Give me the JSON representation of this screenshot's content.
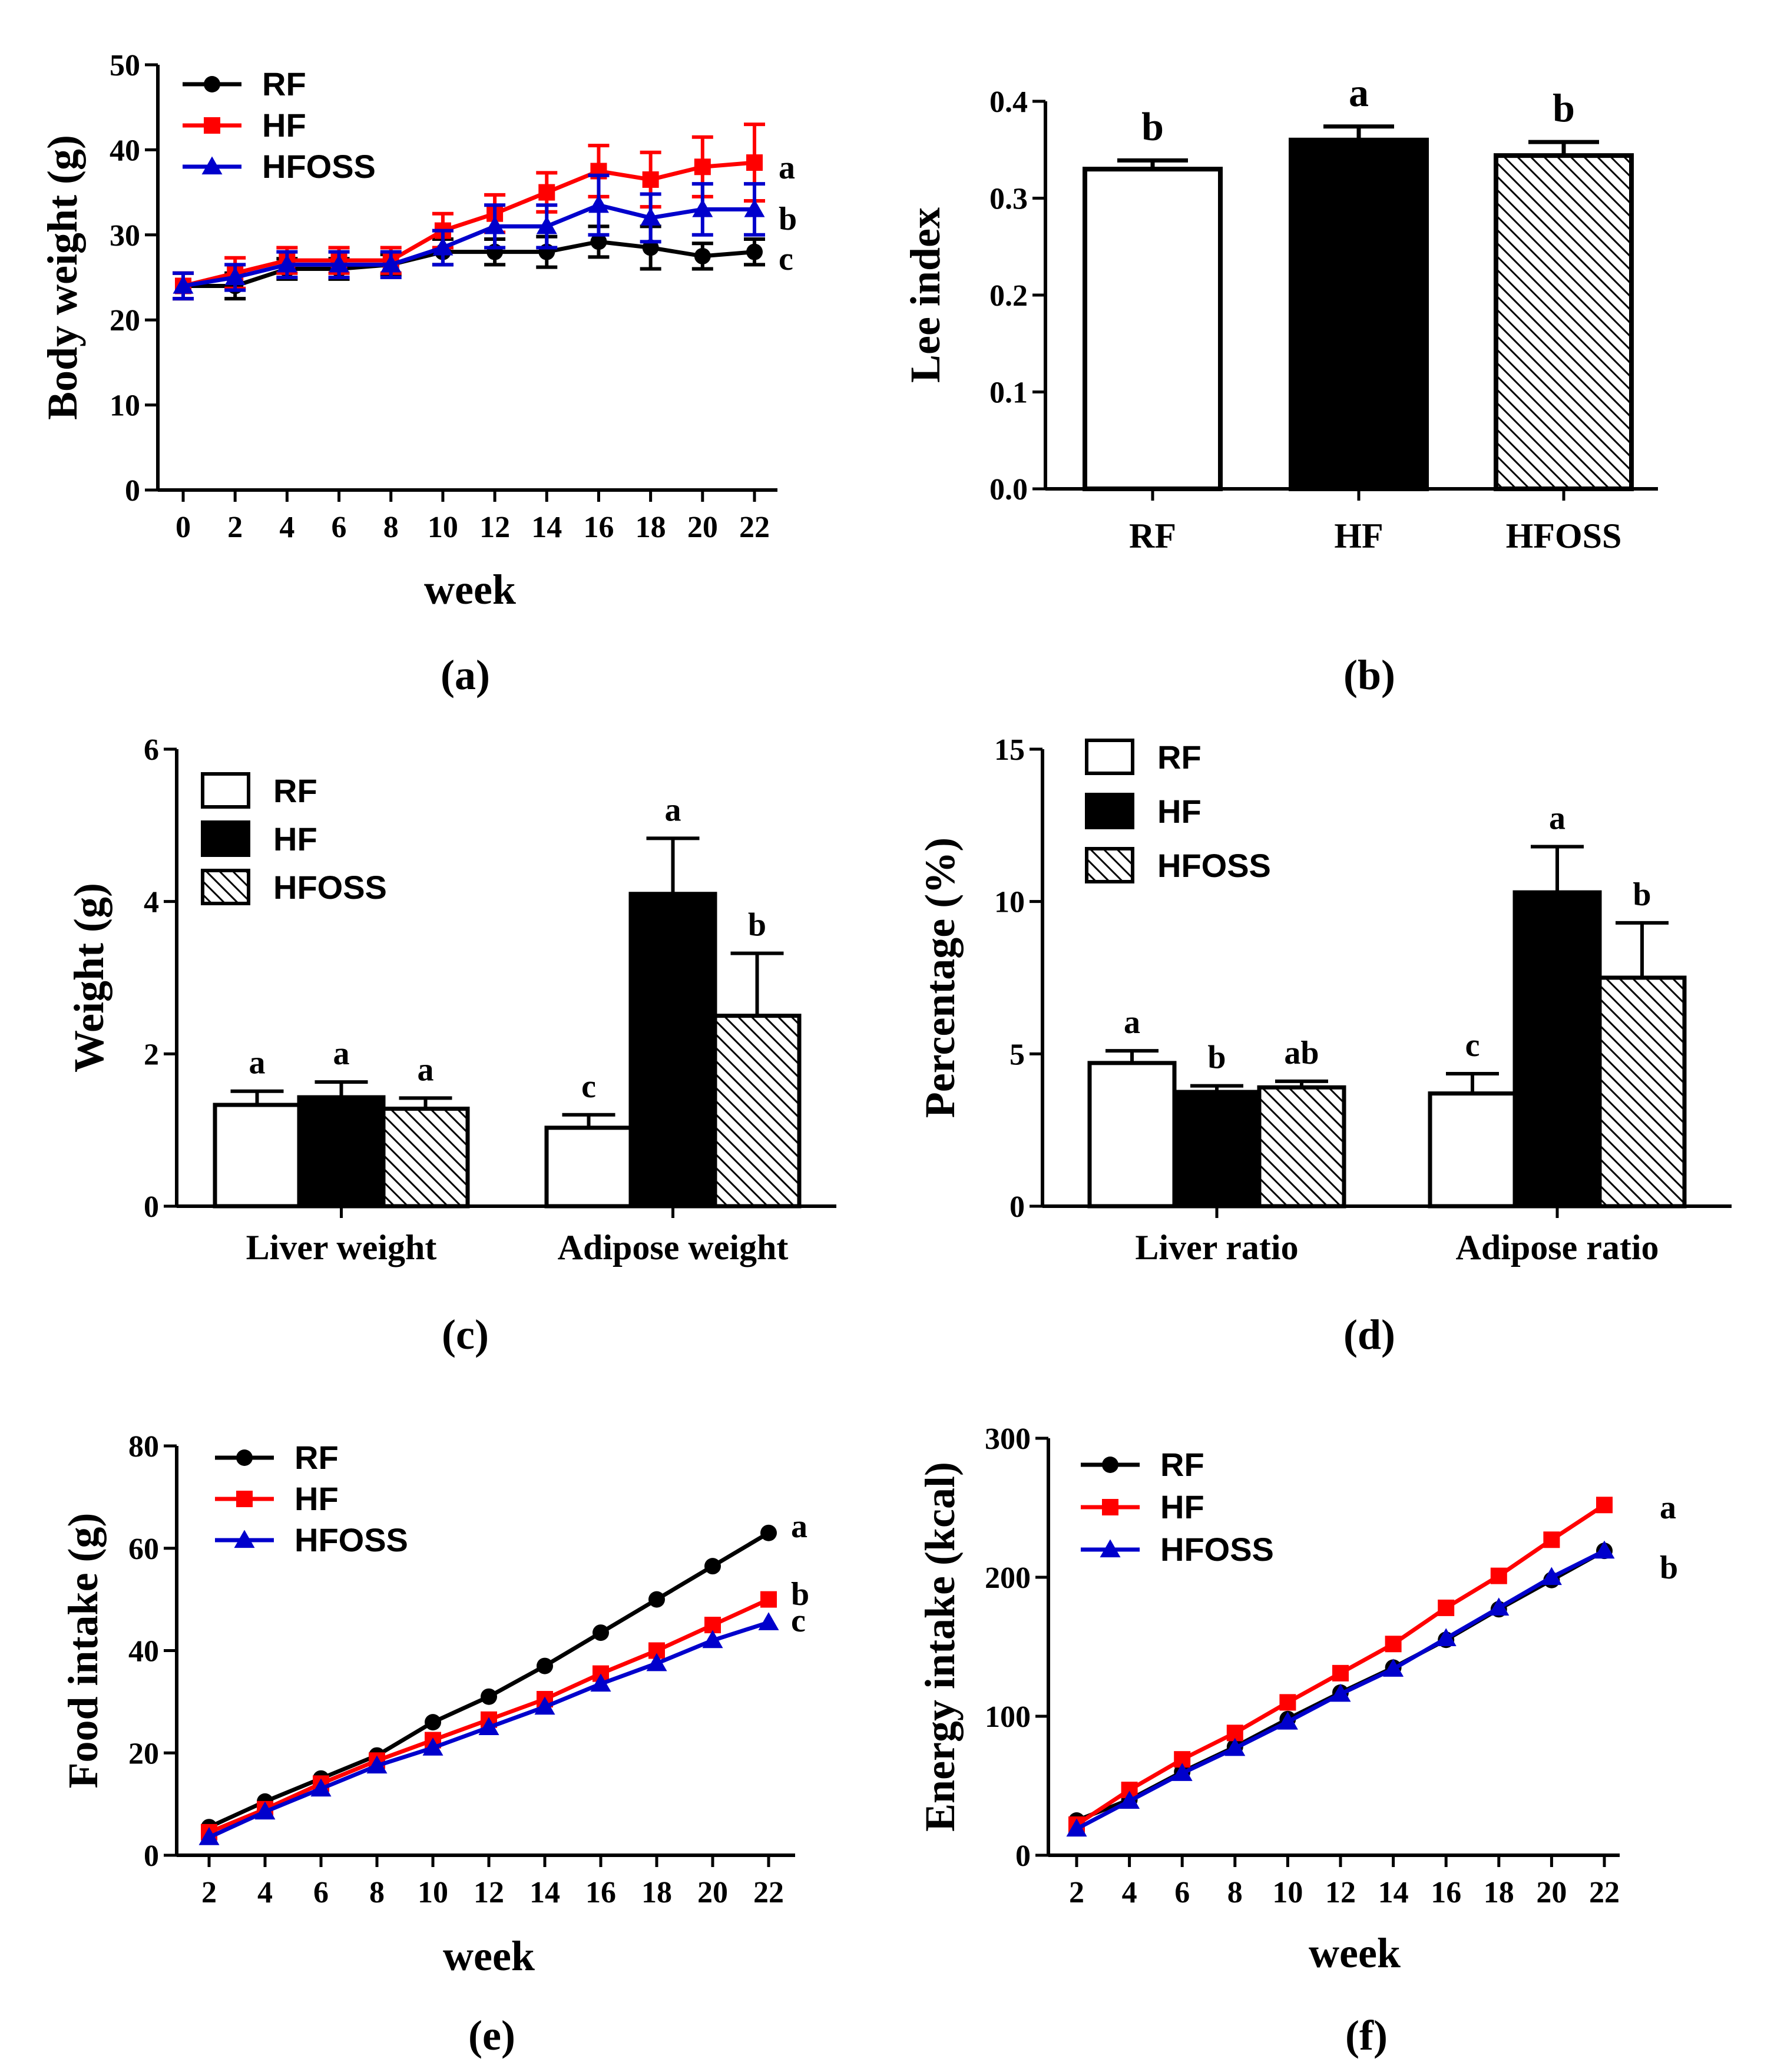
{
  "chart_data": [
    {
      "id": "a",
      "type": "line",
      "panel_label": "(a)",
      "xlabel": "week",
      "ylabel": "Body weight (g)",
      "ylim": [
        0,
        50
      ],
      "yticks": [
        "0",
        "10",
        "20",
        "30",
        "40",
        "50"
      ],
      "x": [
        0,
        2,
        4,
        6,
        8,
        10,
        12,
        14,
        16,
        18,
        20,
        22
      ],
      "xticks": [
        "0",
        "2",
        "4",
        "6",
        "8",
        "10",
        "12",
        "14",
        "16",
        "18",
        "20",
        "22"
      ],
      "series": [
        {
          "name": "RF",
          "color": "#000000",
          "marker": "circle",
          "values": [
            24,
            24,
            26,
            26,
            26.5,
            28,
            28,
            28,
            29.2,
            28.5,
            27.5,
            28
          ],
          "err": [
            1.5,
            1.5,
            1.2,
            1.2,
            1.2,
            1.5,
            1.5,
            1.8,
            1.8,
            2.5,
            1.5,
            1.5
          ]
        },
        {
          "name": "HF",
          "color": "#ff0000",
          "marker": "square",
          "values": [
            24,
            25.5,
            27,
            27,
            27,
            30.5,
            32.5,
            35,
            37.5,
            36.5,
            38,
            38.5
          ],
          "err": [
            1.5,
            1.8,
            1.5,
            1.5,
            1.5,
            2,
            2.2,
            2.3,
            3,
            3.2,
            3.5,
            4.5
          ]
        },
        {
          "name": "HFOSS",
          "color": "#0000cc",
          "marker": "triangle",
          "values": [
            24,
            25,
            26.5,
            26.5,
            26.5,
            28.5,
            31,
            31,
            33.5,
            32,
            33,
            33
          ],
          "err": [
            1.5,
            1.5,
            1.5,
            1.5,
            1.5,
            2,
            2.5,
            2.5,
            3.5,
            2.8,
            3,
            3
          ]
        }
      ],
      "significance": [
        "a",
        "b",
        "c"
      ]
    },
    {
      "id": "b",
      "type": "bar",
      "panel_label": "(b)",
      "ylabel": "Lee index",
      "ylim": [
        0,
        0.4
      ],
      "yticks": [
        "0.0",
        "0.1",
        "0.2",
        "0.3",
        "0.4"
      ],
      "categories": [
        "RF",
        "HF",
        "HFOSS"
      ],
      "values": [
        0.33,
        0.36,
        0.344
      ],
      "err": [
        0.009,
        0.014,
        0.014
      ],
      "fills": [
        "white",
        "black",
        "hatch"
      ],
      "significance": [
        "b",
        "a",
        "b"
      ]
    },
    {
      "id": "c",
      "type": "bar",
      "panel_label": "(c)",
      "ylabel": "Weight (g)",
      "ylim": [
        0,
        6
      ],
      "yticks": [
        "0",
        "2",
        "4",
        "6"
      ],
      "categories": [
        "Liver weight",
        "Adipose weight"
      ],
      "series": [
        {
          "name": "RF",
          "fill": "white",
          "values": [
            1.33,
            1.03
          ],
          "err": [
            0.18,
            0.17
          ],
          "significance": [
            "a",
            "c"
          ]
        },
        {
          "name": "HF",
          "fill": "black",
          "values": [
            1.43,
            4.1
          ],
          "err": [
            0.2,
            0.73
          ],
          "significance": [
            "a",
            "a"
          ]
        },
        {
          "name": "HFOSS",
          "fill": "hatch",
          "values": [
            1.28,
            2.5
          ],
          "err": [
            0.14,
            0.82
          ],
          "significance": [
            "a",
            "b"
          ]
        }
      ]
    },
    {
      "id": "d",
      "type": "bar",
      "panel_label": "(d)",
      "ylabel": "Percentage (%)",
      "ylim": [
        0,
        15
      ],
      "yticks": [
        "0",
        "5",
        "10",
        "15"
      ],
      "categories": [
        "Liver ratio",
        "Adipose ratio"
      ],
      "series": [
        {
          "name": "RF",
          "fill": "white",
          "values": [
            4.7,
            3.7
          ],
          "err": [
            0.4,
            0.65
          ],
          "significance": [
            "a",
            "c"
          ]
        },
        {
          "name": "HF",
          "fill": "black",
          "values": [
            3.75,
            10.3
          ],
          "err": [
            0.2,
            1.5
          ],
          "significance": [
            "b",
            "a"
          ]
        },
        {
          "name": "HFOSS",
          "fill": "hatch",
          "values": [
            3.9,
            7.5
          ],
          "err": [
            0.2,
            1.8
          ],
          "significance": [
            "ab",
            "b"
          ]
        }
      ]
    },
    {
      "id": "e",
      "type": "line",
      "panel_label": "(e)",
      "xlabel": "week",
      "ylabel": "Food intake (g)",
      "ylim": [
        0,
        80
      ],
      "yticks": [
        "0",
        "20",
        "40",
        "60",
        "80"
      ],
      "x": [
        2,
        4,
        6,
        8,
        10,
        12,
        14,
        16,
        18,
        20,
        22
      ],
      "xticks": [
        "2",
        "4",
        "6",
        "8",
        "10",
        "12",
        "14",
        "16",
        "18",
        "20",
        "22"
      ],
      "series": [
        {
          "name": "RF",
          "color": "#000000",
          "marker": "circle",
          "values": [
            5.5,
            10.5,
            15,
            19.5,
            26,
            31,
            37,
            43.5,
            50,
            56.5,
            63
          ]
        },
        {
          "name": "HF",
          "color": "#ff0000",
          "marker": "square",
          "values": [
            4.5,
            9,
            14,
            18.5,
            22.5,
            26.5,
            30.5,
            35.5,
            40,
            45,
            50
          ]
        },
        {
          "name": "HFOSS",
          "color": "#0000cc",
          "marker": "triangle",
          "values": [
            3.5,
            8.5,
            13,
            17.5,
            21,
            25,
            29,
            33.5,
            37.5,
            42,
            45.5
          ]
        }
      ],
      "significance": [
        "a",
        "b",
        "c"
      ]
    },
    {
      "id": "f",
      "type": "line",
      "panel_label": "(f)",
      "xlabel": "week",
      "ylabel": "Energy intake (kcal)",
      "ylim": [
        0,
        300
      ],
      "yticks": [
        "0",
        "100",
        "200",
        "300"
      ],
      "x": [
        2,
        4,
        6,
        8,
        10,
        12,
        14,
        16,
        18,
        20,
        22
      ],
      "xticks": [
        "2",
        "4",
        "6",
        "8",
        "10",
        "12",
        "14",
        "16",
        "18",
        "20",
        "22"
      ],
      "series": [
        {
          "name": "RF",
          "color": "#000000",
          "marker": "circle",
          "values": [
            25,
            40,
            60,
            78,
            98,
            117,
            135,
            155,
            177,
            198,
            219
          ]
        },
        {
          "name": "HF",
          "color": "#ff0000",
          "marker": "square",
          "values": [
            22,
            47,
            69,
            88,
            110,
            131,
            152,
            178,
            201,
            227,
            252
          ]
        },
        {
          "name": "HFOSS",
          "color": "#0000cc",
          "marker": "triangle",
          "values": [
            19,
            39,
            59,
            77,
            96,
            116,
            134,
            156,
            178,
            200,
            219
          ]
        }
      ],
      "significance": [
        "a",
        "b"
      ]
    }
  ]
}
